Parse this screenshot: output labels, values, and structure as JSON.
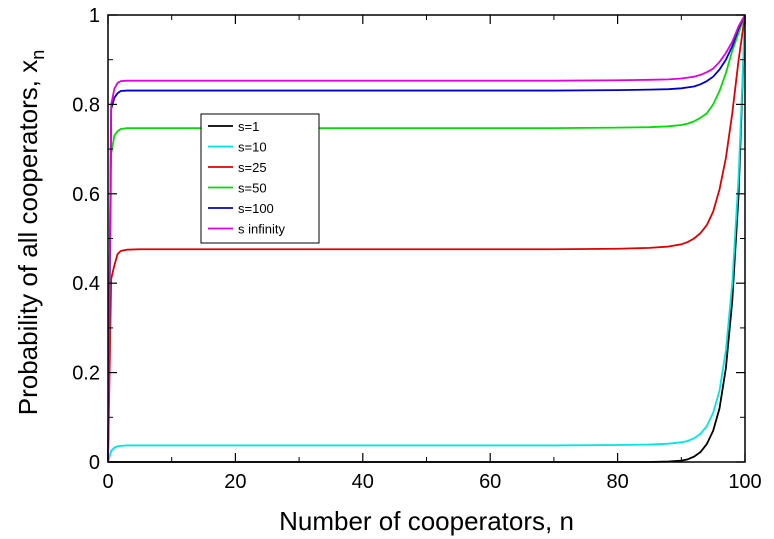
{
  "chart_data": {
    "type": "line",
    "xlabel": "Number of cooperators, n",
    "ylabel_main": "Probability of all cooperators, x",
    "ylabel_sub": "n",
    "xlim": [
      0,
      100
    ],
    "ylim": [
      0,
      1
    ],
    "xticks": [
      0,
      20,
      40,
      60,
      80,
      100
    ],
    "yticks": [
      0,
      0.2,
      0.4,
      0.6,
      0.8,
      1
    ],
    "ytick_labels": [
      "0",
      "0.2",
      "0.4",
      "0.6",
      "0.8",
      "1"
    ],
    "grid": false,
    "legend_position": "upper-left-inset",
    "x": [
      0,
      0.5,
      1,
      1.5,
      2,
      3,
      5,
      10,
      20,
      30,
      40,
      50,
      60,
      70,
      80,
      85,
      88,
      90,
      91,
      92,
      93,
      94,
      95,
      96,
      97,
      98,
      99,
      100
    ],
    "series": [
      {
        "name": "s=1",
        "color": "#000000",
        "values": [
          0,
          0,
          0,
          0,
          0,
          0,
          0,
          0,
          0,
          0,
          0,
          0,
          0,
          0,
          0,
          0,
          0.001,
          0.003,
          0.006,
          0.012,
          0.022,
          0.04,
          0.07,
          0.12,
          0.21,
          0.36,
          0.6,
          1.0
        ]
      },
      {
        "name": "s=10",
        "color": "#00e5e5",
        "values": [
          0,
          0.025,
          0.032,
          0.035,
          0.036,
          0.037,
          0.037,
          0.037,
          0.037,
          0.037,
          0.037,
          0.037,
          0.037,
          0.037,
          0.038,
          0.039,
          0.041,
          0.044,
          0.047,
          0.053,
          0.063,
          0.08,
          0.11,
          0.16,
          0.25,
          0.4,
          0.64,
          1.0
        ]
      },
      {
        "name": "s=25",
        "color": "#e00000",
        "values": [
          0,
          0.41,
          0.44,
          0.465,
          0.472,
          0.475,
          0.476,
          0.476,
          0.476,
          0.476,
          0.476,
          0.476,
          0.476,
          0.476,
          0.477,
          0.479,
          0.482,
          0.487,
          0.492,
          0.5,
          0.512,
          0.53,
          0.56,
          0.61,
          0.68,
          0.78,
          0.9,
          1.0
        ]
      },
      {
        "name": "s=50",
        "color": "#00dd00",
        "values": [
          0,
          0.69,
          0.73,
          0.74,
          0.745,
          0.747,
          0.747,
          0.747,
          0.747,
          0.747,
          0.747,
          0.747,
          0.747,
          0.747,
          0.748,
          0.749,
          0.751,
          0.754,
          0.757,
          0.762,
          0.77,
          0.78,
          0.8,
          0.83,
          0.87,
          0.92,
          0.96,
          1.0
        ]
      },
      {
        "name": "s=100",
        "color": "#0000cc",
        "values": [
          0,
          0.79,
          0.815,
          0.825,
          0.83,
          0.831,
          0.831,
          0.831,
          0.831,
          0.831,
          0.831,
          0.831,
          0.831,
          0.831,
          0.832,
          0.833,
          0.834,
          0.836,
          0.838,
          0.84,
          0.845,
          0.852,
          0.862,
          0.878,
          0.9,
          0.93,
          0.97,
          1.0
        ]
      },
      {
        "name": "s infinity",
        "color": "#e000e0",
        "values": [
          0,
          0.8,
          0.835,
          0.848,
          0.852,
          0.853,
          0.853,
          0.853,
          0.853,
          0.853,
          0.853,
          0.853,
          0.853,
          0.853,
          0.854,
          0.855,
          0.856,
          0.858,
          0.86,
          0.862,
          0.866,
          0.872,
          0.88,
          0.895,
          0.915,
          0.94,
          0.975,
          1.0
        ]
      }
    ]
  }
}
